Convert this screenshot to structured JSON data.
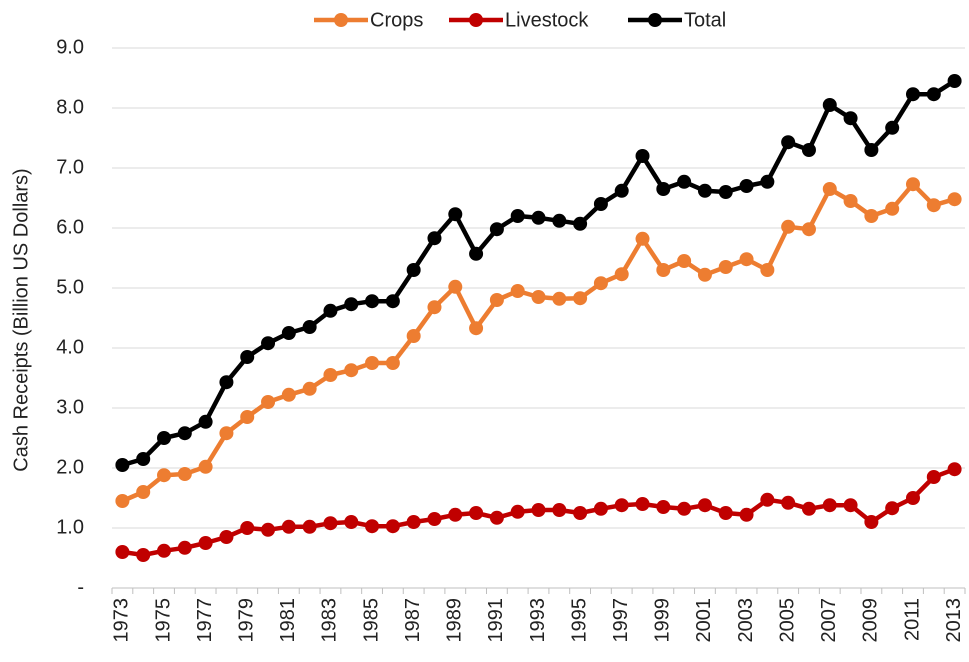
{
  "chart_data": {
    "type": "line",
    "y_label": "Cash Receipts (Billion US Dollars)",
    "categories": [
      "1973",
      null,
      "1975",
      null,
      "1977",
      null,
      "1979",
      null,
      "1981",
      null,
      "1983",
      null,
      "1985",
      null,
      "1987",
      null,
      "1989",
      null,
      "1991",
      null,
      "1993",
      null,
      "1995",
      null,
      "1997",
      null,
      "1999",
      null,
      "2001",
      null,
      "2003",
      null,
      "2005",
      null,
      "2007",
      null,
      "2009",
      null,
      "2011",
      null,
      "2013"
    ],
    "series": [
      {
        "name": "Crops",
        "color": "#ed7d31",
        "values": [
          1.45,
          1.6,
          1.88,
          1.9,
          2.02,
          2.58,
          2.85,
          3.1,
          3.22,
          3.32,
          3.55,
          3.63,
          3.75,
          3.75,
          4.2,
          4.68,
          5.02,
          4.33,
          4.8,
          4.95,
          4.85,
          4.82,
          4.83,
          5.08,
          5.23,
          5.82,
          5.3,
          5.45,
          5.22,
          5.35,
          5.48,
          5.3,
          6.02,
          5.98,
          6.65,
          6.45,
          6.2,
          6.32,
          6.73,
          6.38,
          6.48
        ]
      },
      {
        "name": "Livestock",
        "color": "#c00000",
        "values": [
          0.6,
          0.55,
          0.62,
          0.67,
          0.75,
          0.85,
          1.0,
          0.97,
          1.02,
          1.02,
          1.08,
          1.1,
          1.03,
          1.03,
          1.1,
          1.15,
          1.22,
          1.25,
          1.17,
          1.27,
          1.3,
          1.3,
          1.25,
          1.32,
          1.38,
          1.4,
          1.35,
          1.32,
          1.38,
          1.25,
          1.22,
          1.47,
          1.42,
          1.32,
          1.38,
          1.38,
          1.1,
          1.33,
          1.5,
          1.85,
          1.98
        ]
      },
      {
        "name": "Total",
        "color": "#000000",
        "values": [
          2.05,
          2.15,
          2.5,
          2.58,
          2.77,
          3.43,
          3.85,
          4.08,
          4.25,
          4.35,
          4.62,
          4.73,
          4.78,
          4.78,
          5.3,
          5.83,
          6.23,
          5.57,
          5.98,
          6.2,
          6.17,
          6.12,
          6.07,
          6.4,
          6.62,
          7.2,
          6.65,
          6.77,
          6.62,
          6.6,
          6.7,
          6.77,
          7.43,
          7.3,
          8.05,
          7.83,
          7.3,
          7.67,
          8.23,
          8.23,
          8.45
        ]
      }
    ],
    "ylim": [
      0,
      9
    ],
    "yticks": [
      {
        "value": 0,
        "label": "-"
      },
      {
        "value": 1,
        "label": "1.0"
      },
      {
        "value": 2,
        "label": "2.0"
      },
      {
        "value": 3,
        "label": "3.0"
      },
      {
        "value": 4,
        "label": "4.0"
      },
      {
        "value": 5,
        "label": "5.0"
      },
      {
        "value": 6,
        "label": "6.0"
      },
      {
        "value": 7,
        "label": "7.0"
      },
      {
        "value": 8,
        "label": "8.0"
      },
      {
        "value": 9,
        "label": "9.0"
      }
    ],
    "grid": true,
    "legend": "top"
  }
}
